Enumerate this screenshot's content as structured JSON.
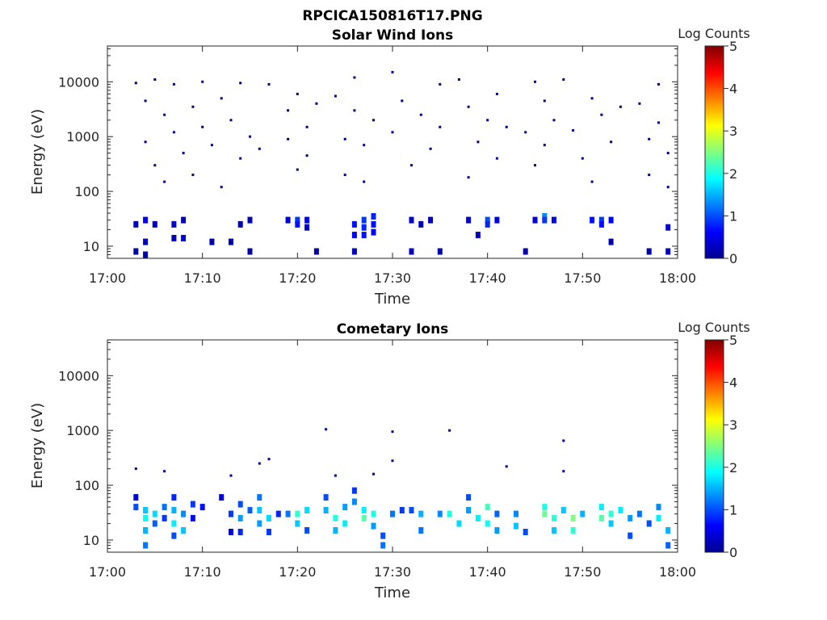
{
  "figure": {
    "title": "RPCICA150816T17.PNG"
  },
  "chart_data": [
    {
      "type": "heatmap",
      "title": "Solar Wind Ions",
      "xlabel": "Time",
      "ylabel": "Energy (eV)",
      "x_ticks": [
        "17:00",
        "17:10",
        "17:20",
        "17:30",
        "17:40",
        "17:50",
        "18:00"
      ],
      "x_range": [
        "17:00",
        "18:00"
      ],
      "y_scale": "log",
      "y_ticks": [
        "10",
        "100",
        "1000",
        "10000"
      ],
      "ylim": [
        6,
        45000
      ],
      "colorbar": {
        "label": "Log Counts",
        "ticks": [
          "0",
          "1",
          "2",
          "3",
          "4",
          "5"
        ],
        "range": [
          0,
          5
        ],
        "colormap": "jet"
      },
      "cells": [
        {
          "t": "17:03",
          "e": 25,
          "v": 0.3
        },
        {
          "t": "17:03",
          "e": 8,
          "v": 0.2
        },
        {
          "t": "17:04",
          "e": 30,
          "v": 0.5
        },
        {
          "t": "17:04",
          "e": 12,
          "v": 0.3
        },
        {
          "t": "17:04",
          "e": 7,
          "v": 0.2
        },
        {
          "t": "17:05",
          "e": 25,
          "v": 0.3
        },
        {
          "t": "17:07",
          "e": 25,
          "v": 0.4
        },
        {
          "t": "17:07",
          "e": 14,
          "v": 0.3
        },
        {
          "t": "17:08",
          "e": 14,
          "v": 0.4
        },
        {
          "t": "17:08",
          "e": 30,
          "v": 0.3
        },
        {
          "t": "17:11",
          "e": 12,
          "v": 0.2
        },
        {
          "t": "17:13",
          "e": 12,
          "v": 0.2
        },
        {
          "t": "17:14",
          "e": 25,
          "v": 0.3
        },
        {
          "t": "17:15",
          "e": 30,
          "v": 0.3
        },
        {
          "t": "17:15",
          "e": 8,
          "v": 0.2
        },
        {
          "t": "17:19",
          "e": 30,
          "v": 0.4
        },
        {
          "t": "17:20",
          "e": 30,
          "v": 0.9
        },
        {
          "t": "17:20",
          "e": 25,
          "v": 0.7
        },
        {
          "t": "17:21",
          "e": 30,
          "v": 0.6
        },
        {
          "t": "17:21",
          "e": 22,
          "v": 0.3
        },
        {
          "t": "17:22",
          "e": 8,
          "v": 0.2
        },
        {
          "t": "17:26",
          "e": 25,
          "v": 0.7
        },
        {
          "t": "17:26",
          "e": 16,
          "v": 0.6
        },
        {
          "t": "17:26",
          "e": 8,
          "v": 0.3
        },
        {
          "t": "17:27",
          "e": 30,
          "v": 0.9
        },
        {
          "t": "17:27",
          "e": 22,
          "v": 0.8
        },
        {
          "t": "17:27",
          "e": 16,
          "v": 0.7
        },
        {
          "t": "17:28",
          "e": 35,
          "v": 0.8
        },
        {
          "t": "17:28",
          "e": 25,
          "v": 0.7
        },
        {
          "t": "17:28",
          "e": 18,
          "v": 0.6
        },
        {
          "t": "17:32",
          "e": 30,
          "v": 0.4
        },
        {
          "t": "17:32",
          "e": 8,
          "v": 0.3
        },
        {
          "t": "17:33",
          "e": 25,
          "v": 0.3
        },
        {
          "t": "17:34",
          "e": 30,
          "v": 0.3
        },
        {
          "t": "17:35",
          "e": 8,
          "v": 0.2
        },
        {
          "t": "17:38",
          "e": 30,
          "v": 0.4
        },
        {
          "t": "17:39",
          "e": 16,
          "v": 0.3
        },
        {
          "t": "17:40",
          "e": 30,
          "v": 1.0
        },
        {
          "t": "17:40",
          "e": 25,
          "v": 0.8
        },
        {
          "t": "17:41",
          "e": 30,
          "v": 0.5
        },
        {
          "t": "17:44",
          "e": 8,
          "v": 0.2
        },
        {
          "t": "17:45",
          "e": 30,
          "v": 0.4
        },
        {
          "t": "17:46",
          "e": 35,
          "v": 1.3
        },
        {
          "t": "17:46",
          "e": 30,
          "v": 0.9
        },
        {
          "t": "17:47",
          "e": 30,
          "v": 0.5
        },
        {
          "t": "17:51",
          "e": 30,
          "v": 0.7
        },
        {
          "t": "17:52",
          "e": 30,
          "v": 0.9
        },
        {
          "t": "17:52",
          "e": 25,
          "v": 0.7
        },
        {
          "t": "17:53",
          "e": 30,
          "v": 0.6
        },
        {
          "t": "17:53",
          "e": 12,
          "v": 0.2
        },
        {
          "t": "17:57",
          "e": 8,
          "v": 0.2
        },
        {
          "t": "17:59",
          "e": 22,
          "v": 0.4
        },
        {
          "t": "17:59",
          "e": 8,
          "v": 0.3
        }
      ],
      "scatter": [
        {
          "t": "17:03",
          "e": 9500
        },
        {
          "t": "17:04",
          "e": 4500
        },
        {
          "t": "17:04",
          "e": 800
        },
        {
          "t": "17:05",
          "e": 300
        },
        {
          "t": "17:05",
          "e": 11000
        },
        {
          "t": "17:06",
          "e": 2500
        },
        {
          "t": "17:06",
          "e": 150
        },
        {
          "t": "17:07",
          "e": 9000
        },
        {
          "t": "17:07",
          "e": 1200
        },
        {
          "t": "17:08",
          "e": 500
        },
        {
          "t": "17:09",
          "e": 3500
        },
        {
          "t": "17:09",
          "e": 200
        },
        {
          "t": "17:10",
          "e": 10000
        },
        {
          "t": "17:10",
          "e": 1500
        },
        {
          "t": "17:11",
          "e": 700
        },
        {
          "t": "17:12",
          "e": 5000
        },
        {
          "t": "17:12",
          "e": 120
        },
        {
          "t": "17:13",
          "e": 2000
        },
        {
          "t": "17:14",
          "e": 9500
        },
        {
          "t": "17:14",
          "e": 400
        },
        {
          "t": "17:15",
          "e": 1000
        },
        {
          "t": "17:16",
          "e": 600
        },
        {
          "t": "17:17",
          "e": 9000
        },
        {
          "t": "17:19",
          "e": 3000
        },
        {
          "t": "17:19",
          "e": 900
        },
        {
          "t": "17:20",
          "e": 6000
        },
        {
          "t": "17:20",
          "e": 250
        },
        {
          "t": "17:21",
          "e": 1500
        },
        {
          "t": "17:21",
          "e": 450
        },
        {
          "t": "17:22",
          "e": 4000
        },
        {
          "t": "17:24",
          "e": 5500
        },
        {
          "t": "17:25",
          "e": 900
        },
        {
          "t": "17:25",
          "e": 200
        },
        {
          "t": "17:26",
          "e": 12000
        },
        {
          "t": "17:26",
          "e": 3000
        },
        {
          "t": "17:27",
          "e": 700
        },
        {
          "t": "17:27",
          "e": 150
        },
        {
          "t": "17:28",
          "e": 2000
        },
        {
          "t": "17:30",
          "e": 15000
        },
        {
          "t": "17:30",
          "e": 1200
        },
        {
          "t": "17:31",
          "e": 4500
        },
        {
          "t": "17:32",
          "e": 300
        },
        {
          "t": "17:33",
          "e": 2500
        },
        {
          "t": "17:34",
          "e": 600
        },
        {
          "t": "17:35",
          "e": 9000
        },
        {
          "t": "17:35",
          "e": 1500
        },
        {
          "t": "17:37",
          "e": 11000
        },
        {
          "t": "17:38",
          "e": 3500
        },
        {
          "t": "17:38",
          "e": 180
        },
        {
          "t": "17:39",
          "e": 800
        },
        {
          "t": "17:40",
          "e": 2000
        },
        {
          "t": "17:41",
          "e": 6000
        },
        {
          "t": "17:41",
          "e": 400
        },
        {
          "t": "17:42",
          "e": 1500
        },
        {
          "t": "17:44",
          "e": 1200
        },
        {
          "t": "17:45",
          "e": 300
        },
        {
          "t": "17:45",
          "e": 10000
        },
        {
          "t": "17:46",
          "e": 4500
        },
        {
          "t": "17:46",
          "e": 700
        },
        {
          "t": "17:47",
          "e": 2000
        },
        {
          "t": "17:48",
          "e": 11000
        },
        {
          "t": "17:49",
          "e": 1300
        },
        {
          "t": "17:50",
          "e": 400
        },
        {
          "t": "17:51",
          "e": 5000
        },
        {
          "t": "17:51",
          "e": 150
        },
        {
          "t": "17:52",
          "e": 2500
        },
        {
          "t": "17:53",
          "e": 800
        },
        {
          "t": "17:54",
          "e": 3500
        },
        {
          "t": "17:56",
          "e": 4000
        },
        {
          "t": "17:57",
          "e": 900
        },
        {
          "t": "17:57",
          "e": 200
        },
        {
          "t": "17:58",
          "e": 9000
        },
        {
          "t": "17:58",
          "e": 1800
        },
        {
          "t": "17:59",
          "e": 500
        },
        {
          "t": "17:59",
          "e": 120
        }
      ]
    },
    {
      "type": "heatmap",
      "title": "Cometary Ions",
      "xlabel": "Time",
      "ylabel": "Energy (eV)",
      "x_ticks": [
        "17:00",
        "17:10",
        "17:20",
        "17:30",
        "17:40",
        "17:50",
        "18:00"
      ],
      "x_range": [
        "17:00",
        "18:00"
      ],
      "y_scale": "log",
      "y_ticks": [
        "10",
        "100",
        "1000",
        "10000"
      ],
      "ylim": [
        6,
        45000
      ],
      "colorbar": {
        "label": "Log Counts",
        "ticks": [
          "0",
          "1",
          "2",
          "3",
          "4",
          "5"
        ],
        "range": [
          0,
          5
        ],
        "colormap": "jet"
      },
      "cells": [
        {
          "t": "17:03",
          "e": 60,
          "v": 0.4
        },
        {
          "t": "17:03",
          "e": 40,
          "v": 1.0
        },
        {
          "t": "17:04",
          "e": 35,
          "v": 1.6
        },
        {
          "t": "17:04",
          "e": 25,
          "v": 1.9
        },
        {
          "t": "17:04",
          "e": 15,
          "v": 1.5
        },
        {
          "t": "17:04",
          "e": 8,
          "v": 1.2
        },
        {
          "t": "17:05",
          "e": 30,
          "v": 1.7
        },
        {
          "t": "17:05",
          "e": 20,
          "v": 1.1
        },
        {
          "t": "17:06",
          "e": 40,
          "v": 1.2
        },
        {
          "t": "17:06",
          "e": 25,
          "v": 0.9
        },
        {
          "t": "17:07",
          "e": 60,
          "v": 0.8
        },
        {
          "t": "17:07",
          "e": 35,
          "v": 1.5
        },
        {
          "t": "17:07",
          "e": 20,
          "v": 1.8
        },
        {
          "t": "17:07",
          "e": 12,
          "v": 1.0
        },
        {
          "t": "17:08",
          "e": 30,
          "v": 1.3
        },
        {
          "t": "17:08",
          "e": 15,
          "v": 1.6
        },
        {
          "t": "17:09",
          "e": 45,
          "v": 0.9
        },
        {
          "t": "17:09",
          "e": 25,
          "v": 0.6
        },
        {
          "t": "17:10",
          "e": 40,
          "v": 0.7
        },
        {
          "t": "17:12",
          "e": 60,
          "v": 0.4
        },
        {
          "t": "17:13",
          "e": 30,
          "v": 0.9
        },
        {
          "t": "17:13",
          "e": 14,
          "v": 0.5
        },
        {
          "t": "17:14",
          "e": 45,
          "v": 1.0
        },
        {
          "t": "17:14",
          "e": 25,
          "v": 1.4
        },
        {
          "t": "17:14",
          "e": 14,
          "v": 0.8
        },
        {
          "t": "17:15",
          "e": 35,
          "v": 1.1
        },
        {
          "t": "17:16",
          "e": 60,
          "v": 1.2
        },
        {
          "t": "17:16",
          "e": 35,
          "v": 1.6
        },
        {
          "t": "17:16",
          "e": 20,
          "v": 1.4
        },
        {
          "t": "17:17",
          "e": 25,
          "v": 1.7
        },
        {
          "t": "17:17",
          "e": 14,
          "v": 0.9
        },
        {
          "t": "17:18",
          "e": 30,
          "v": 0.8
        },
        {
          "t": "17:19",
          "e": 30,
          "v": 1.2
        },
        {
          "t": "17:20",
          "e": 30,
          "v": 2.1
        },
        {
          "t": "17:20",
          "e": 20,
          "v": 1.6
        },
        {
          "t": "17:21",
          "e": 35,
          "v": 1.7
        },
        {
          "t": "17:21",
          "e": 15,
          "v": 1.0
        },
        {
          "t": "17:23",
          "e": 60,
          "v": 1.0
        },
        {
          "t": "17:23",
          "e": 35,
          "v": 1.5
        },
        {
          "t": "17:24",
          "e": 25,
          "v": 2.0
        },
        {
          "t": "17:24",
          "e": 15,
          "v": 1.5
        },
        {
          "t": "17:25",
          "e": 40,
          "v": 1.4
        },
        {
          "t": "17:25",
          "e": 20,
          "v": 1.8
        },
        {
          "t": "17:26",
          "e": 80,
          "v": 0.9
        },
        {
          "t": "17:26",
          "e": 50,
          "v": 1.3
        },
        {
          "t": "17:27",
          "e": 35,
          "v": 1.8
        },
        {
          "t": "17:27",
          "e": 25,
          "v": 2.3
        },
        {
          "t": "17:28",
          "e": 30,
          "v": 2.0
        },
        {
          "t": "17:28",
          "e": 18,
          "v": 1.4
        },
        {
          "t": "17:29",
          "e": 12,
          "v": 1.0
        },
        {
          "t": "17:29",
          "e": 8,
          "v": 1.2
        },
        {
          "t": "17:30",
          "e": 30,
          "v": 1.2
        },
        {
          "t": "17:31",
          "e": 35,
          "v": 0.9
        },
        {
          "t": "17:32",
          "e": 35,
          "v": 1.0
        },
        {
          "t": "17:33",
          "e": 30,
          "v": 1.5
        },
        {
          "t": "17:33",
          "e": 15,
          "v": 1.2
        },
        {
          "t": "17:35",
          "e": 30,
          "v": 1.3
        },
        {
          "t": "17:36",
          "e": 30,
          "v": 2.0
        },
        {
          "t": "17:37",
          "e": 20,
          "v": 1.7
        },
        {
          "t": "17:38",
          "e": 60,
          "v": 1.0
        },
        {
          "t": "17:38",
          "e": 35,
          "v": 1.4
        },
        {
          "t": "17:39",
          "e": 25,
          "v": 1.8
        },
        {
          "t": "17:40",
          "e": 40,
          "v": 2.2
        },
        {
          "t": "17:40",
          "e": 20,
          "v": 1.9
        },
        {
          "t": "17:41",
          "e": 15,
          "v": 1.4
        },
        {
          "t": "17:41",
          "e": 30,
          "v": 1.1
        },
        {
          "t": "17:43",
          "e": 30,
          "v": 1.3
        },
        {
          "t": "17:43",
          "e": 18,
          "v": 1.6
        },
        {
          "t": "17:44",
          "e": 14,
          "v": 1.0
        },
        {
          "t": "17:46",
          "e": 40,
          "v": 2.0
        },
        {
          "t": "17:46",
          "e": 30,
          "v": 2.4
        },
        {
          "t": "17:47",
          "e": 25,
          "v": 2.1
        },
        {
          "t": "17:47",
          "e": 15,
          "v": 1.6
        },
        {
          "t": "17:48",
          "e": 35,
          "v": 1.6
        },
        {
          "t": "17:49",
          "e": 25,
          "v": 2.5
        },
        {
          "t": "17:49",
          "e": 15,
          "v": 2.1
        },
        {
          "t": "17:50",
          "e": 30,
          "v": 1.5
        },
        {
          "t": "17:52",
          "e": 40,
          "v": 1.8
        },
        {
          "t": "17:52",
          "e": 25,
          "v": 2.3
        },
        {
          "t": "17:53",
          "e": 30,
          "v": 2.1
        },
        {
          "t": "17:53",
          "e": 20,
          "v": 1.6
        },
        {
          "t": "17:54",
          "e": 35,
          "v": 1.8
        },
        {
          "t": "17:55",
          "e": 25,
          "v": 1.4
        },
        {
          "t": "17:55",
          "e": 12,
          "v": 1.0
        },
        {
          "t": "17:56",
          "e": 30,
          "v": 1.2
        },
        {
          "t": "17:57",
          "e": 20,
          "v": 1.0
        },
        {
          "t": "17:58",
          "e": 40,
          "v": 1.3
        },
        {
          "t": "17:58",
          "e": 25,
          "v": 1.8
        },
        {
          "t": "17:59",
          "e": 15,
          "v": 1.5
        },
        {
          "t": "17:59",
          "e": 8,
          "v": 1.1
        }
      ],
      "scatter": [
        {
          "t": "17:03",
          "e": 200
        },
        {
          "t": "17:06",
          "e": 180
        },
        {
          "t": "17:13",
          "e": 150
        },
        {
          "t": "17:16",
          "e": 250
        },
        {
          "t": "17:17",
          "e": 300
        },
        {
          "t": "17:23",
          "e": 1050
        },
        {
          "t": "17:24",
          "e": 150
        },
        {
          "t": "17:28",
          "e": 160
        },
        {
          "t": "17:30",
          "e": 950
        },
        {
          "t": "17:30",
          "e": 280
        },
        {
          "t": "17:36",
          "e": 1000
        },
        {
          "t": "17:42",
          "e": 220
        },
        {
          "t": "17:48",
          "e": 650
        },
        {
          "t": "17:48",
          "e": 180
        }
      ]
    }
  ]
}
